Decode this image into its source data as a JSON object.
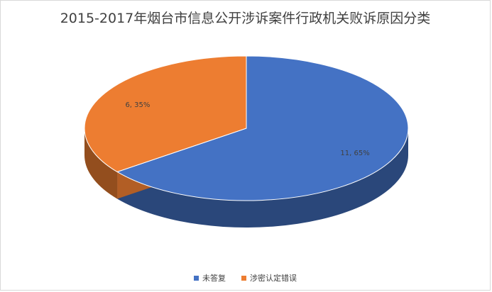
{
  "chart_data": {
    "type": "pie",
    "title": "2015-2017年烟台市信息公开涉诉案件行政机关败诉原因分类",
    "three_d": true,
    "legend_position": "bottom",
    "slices": [
      {
        "name": "未答复",
        "value": 11,
        "percent": 65,
        "label": "11, 65%",
        "color": "#4472c4"
      },
      {
        "name": "涉密认定错误",
        "value": 6,
        "percent": 35,
        "label": "6, 35%",
        "color": "#ed7d31"
      }
    ]
  }
}
